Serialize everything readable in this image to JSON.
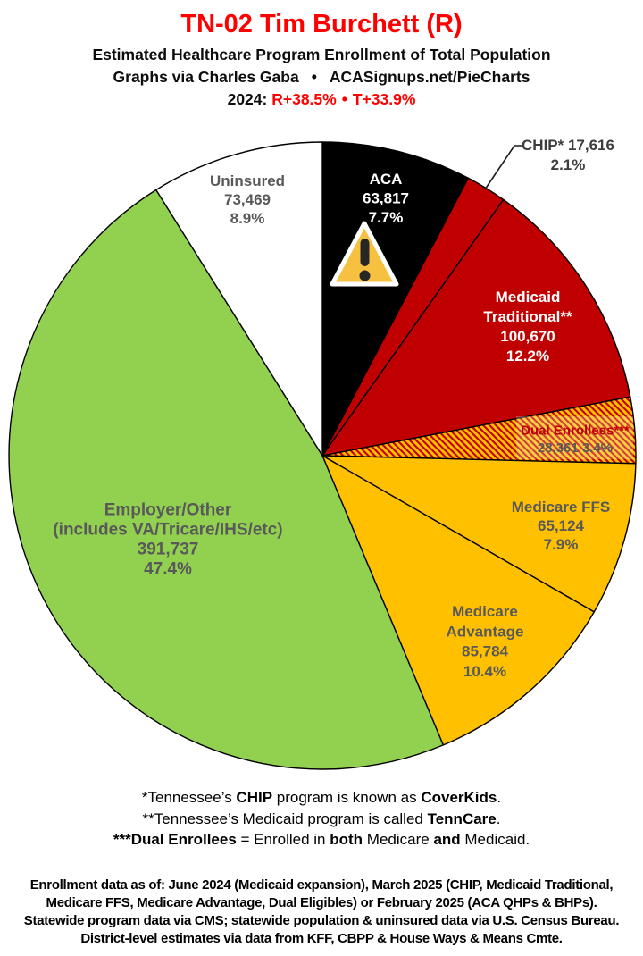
{
  "header": {
    "title": "TN-02 Tim Burchett (R)",
    "title_color": "#FF0000",
    "subtitle": "Estimated Healthcare Program Enrollment of Total Population",
    "credit_prefix": "Graphs via Charles Gaba",
    "credit_sep": "•",
    "credit_site": "ACASignups.net/PieCharts",
    "lean_year": "2024:",
    "lean_r": "R+38.5%",
    "lean_sep": "•",
    "lean_t": "T+33.9%",
    "lean_color": "#FF0000"
  },
  "icons": {
    "aca_warning": "warning-triangle-icon"
  },
  "chart_data": {
    "type": "pie",
    "title": "Estimated Healthcare Program Enrollment of Total Population",
    "direction": "clockwise",
    "start_angle": "12 o'clock",
    "stroke_color": "#000000",
    "label_gray": "#595959",
    "hatch": {
      "base": "#FFC000",
      "stripe": "#C00000"
    },
    "slices": [
      {
        "key": "aca",
        "name": "ACA",
        "value": 63817,
        "value_label": "63,817",
        "pct": 7.7,
        "pct_label": "7.7%",
        "color": "#000000",
        "label_color": "#FFFFFF",
        "label_lines": [
          "ACA",
          "63,817",
          "7.7%"
        ]
      },
      {
        "key": "chip",
        "name": "CHIP*",
        "value": 17616,
        "value_label": "17,616",
        "pct": 2.1,
        "pct_label": "2.1%",
        "color": "#C00000",
        "label_color": "#3D3D3D",
        "label_lines": [
          "CHIP* 17,616",
          "2.1%"
        ],
        "callout": true
      },
      {
        "key": "medicaid",
        "name": "Medicaid Traditional**",
        "value": 100670,
        "value_label": "100,670",
        "pct": 12.2,
        "pct_label": "12.2%",
        "color": "#C00000",
        "label_color": "#FFFFFF",
        "label_lines": [
          "Medicaid",
          "Traditional**",
          "100,670",
          "12.2%"
        ]
      },
      {
        "key": "dual",
        "name": "Dual Enrollees***",
        "value": 28361,
        "value_label": "28,361",
        "pct": 3.4,
        "pct_label": "3.4%",
        "color": "hatch",
        "label_color": "#C00000",
        "label_lines": [
          "Dual Enrollees***",
          "28,361 3.4%"
        ],
        "label_line_colors": [
          "#C00000",
          "#595959"
        ]
      },
      {
        "key": "ffs",
        "name": "Medicare FFS",
        "value": 65124,
        "value_label": "65,124",
        "pct": 7.9,
        "pct_label": "7.9%",
        "color": "#FFC000",
        "label_color": "#595959",
        "label_lines": [
          "Medicare FFS",
          "65,124",
          "7.9%"
        ]
      },
      {
        "key": "madv",
        "name": "Medicare Advantage",
        "value": 85784,
        "value_label": "85,784",
        "pct": 10.4,
        "pct_label": "10.4%",
        "color": "#FFC000",
        "label_color": "#595959",
        "label_lines": [
          "Medicare",
          "Advantage",
          "85,784",
          "10.4%"
        ]
      },
      {
        "key": "employer",
        "name": "Employer/Other (includes VA/Tricare/IHS/etc)",
        "value": 391737,
        "value_label": "391,737",
        "pct": 47.4,
        "pct_label": "47.4%",
        "color": "#92D050",
        "label_color": "#595959",
        "label_lines": [
          "Employer/Other",
          "(includes VA/Tricare/IHS/etc)",
          "391,737",
          "47.4%"
        ]
      },
      {
        "key": "uninsured",
        "name": "Uninsured",
        "value": 73469,
        "value_label": "73,469",
        "pct": 8.9,
        "pct_label": "8.9%",
        "color": "#FFFFFF",
        "label_color": "#595959",
        "label_lines": [
          "Uninsured",
          "73,469",
          "8.9%"
        ]
      }
    ]
  },
  "footnotes": {
    "line1": {
      "s1": "*Tennessee’s ",
      "b1": "CHIP",
      "s2": " program is known as ",
      "b2": "CoverKids",
      "s3": "."
    },
    "line2": {
      "s1": "**Tennessee’s Medicaid program is called ",
      "b1": "TennCare",
      "s2": "."
    },
    "line3": {
      "b1": "***Dual Enrollees",
      "s1": " = Enrolled in ",
      "b2": "both",
      "s2": " Medicare ",
      "b3": "and",
      "s3": " Medicaid."
    }
  },
  "source": {
    "lines": [
      "Enrollment data as of: June 2024 (Medicaid expansion), March 2025 (CHIP, Medicaid Traditional,",
      "Medicare FFS, Medicare Advantage, Dual Eligibles) or February 2025 (ACA QHPs & BHPs).",
      "Statewide program data via CMS; statewide population & uninsured data via U.S. Census Bureau.",
      "District-level estimates via data from KFF, CBPP & House Ways & Means Cmte."
    ]
  }
}
